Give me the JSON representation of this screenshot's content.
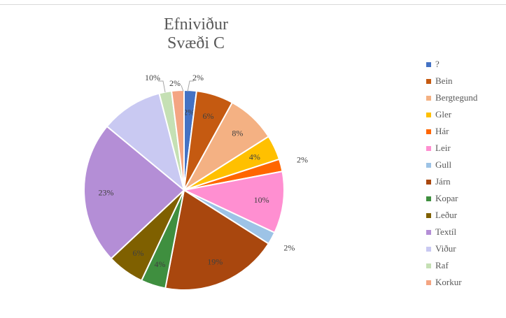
{
  "chart_data": {
    "type": "pie",
    "title_lines": [
      "Efniviður",
      "Svæði C"
    ],
    "legend_position": "right",
    "slices": [
      {
        "name": "?",
        "value": 2,
        "label": "2%",
        "color": "#4472c4"
      },
      {
        "name": "Bein",
        "value": 6,
        "label": "6%",
        "color": "#c55a11"
      },
      {
        "name": "Bergtegund",
        "value": 8,
        "label": "8%",
        "color": "#f4b183"
      },
      {
        "name": "Gler",
        "value": 4,
        "label": "4%",
        "color": "#ffc000"
      },
      {
        "name": "Hár",
        "value": 2,
        "label": "2%",
        "color": "#ff6600"
      },
      {
        "name": "Leir",
        "value": 10,
        "label": "10%",
        "color": "#ff8fd1"
      },
      {
        "name": "Gull",
        "value": 2,
        "label": "2%",
        "color": "#9dc3e6"
      },
      {
        "name": "Járn",
        "value": 19,
        "label": "19%",
        "color": "#a9470e"
      },
      {
        "name": "Kopar",
        "value": 4,
        "label": "4%",
        "color": "#3f8f3f"
      },
      {
        "name": "Leður",
        "value": 6,
        "label": "6%",
        "color": "#7f6000"
      },
      {
        "name": "Textíl",
        "value": 23,
        "label": "23%",
        "color": "#b48ed6"
      },
      {
        "name": "Viður",
        "value": 10,
        "label": "10%",
        "color": "#c9c9f2"
      },
      {
        "name": "Raf",
        "value": 2,
        "label": "2%",
        "color": "#c5e0b4"
      },
      {
        "name": "Korkur",
        "value": 2,
        "label": "2%",
        "color": "#f4a582"
      }
    ]
  }
}
